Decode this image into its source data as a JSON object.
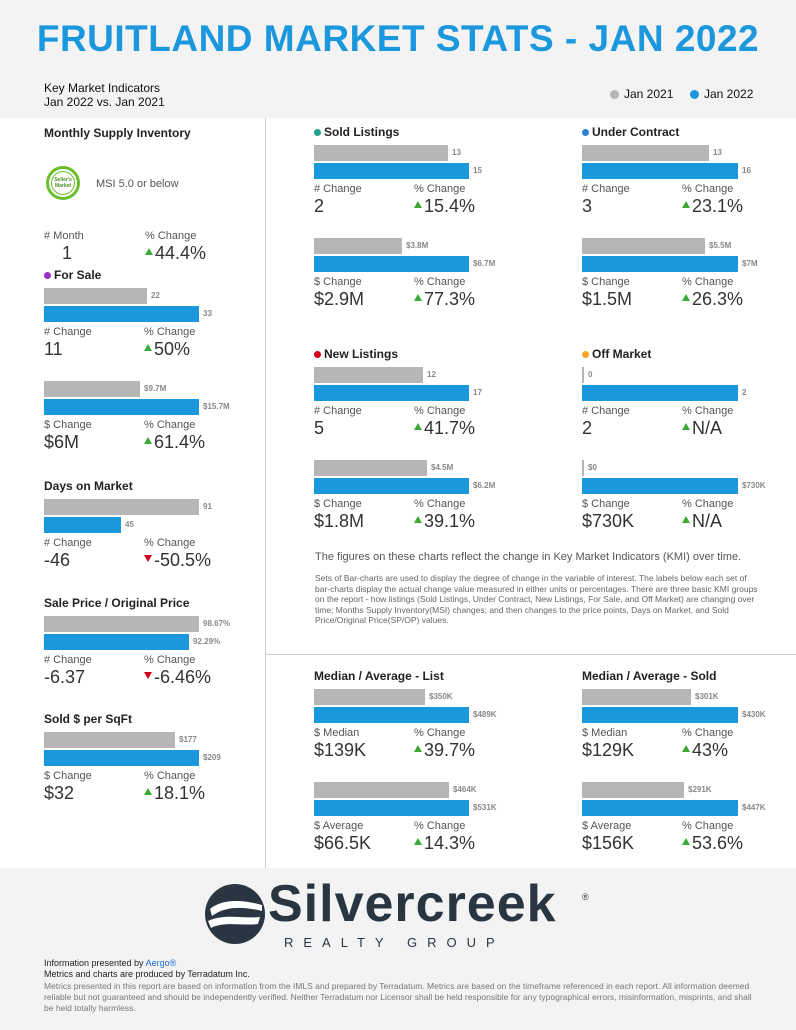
{
  "title": "FRUITLAND MARKET STATS - JAN 2022",
  "subtitle_line1": "Key Market Indicators",
  "subtitle_line2": "Jan 2022 vs. Jan 2021",
  "legend": [
    {
      "label": "Jan 2021",
      "color": "#b6b6b6"
    },
    {
      "label": "Jan 2022",
      "color": "#1b97dd"
    }
  ],
  "colors": {
    "prior": "#b6b6b6",
    "current": "#1b97dd",
    "up": "#3aaa35",
    "down": "#d0021b"
  },
  "msi": {
    "title": "Monthly Supply Inventory",
    "badge_text": "Seller's Market",
    "badge_icon": "sellers-market-badge-icon",
    "text": "MSI 5.0 or below",
    "change_label": "# Month",
    "change_value": "1",
    "pct_label": "% Change",
    "pct_value": "44.4%",
    "direction": "up"
  },
  "chart_data": [
    {
      "type": "bar",
      "title": "For Sale",
      "title_dot": "#9b30c9",
      "series": [
        {
          "name": "Jan 2021",
          "values": [
            22,
            9.7
          ]
        },
        {
          "name": "Jan 2022",
          "values": [
            33,
            15.7
          ]
        }
      ],
      "pairs": [
        {
          "max": 33,
          "values": [
            22,
            33
          ],
          "labels": [
            "22",
            "33"
          ],
          "change_label": "# Change",
          "change_value": "11",
          "pct_label": "% Change",
          "pct_value": "50%",
          "direction": "up"
        },
        {
          "max": 15.7,
          "values": [
            9.7,
            15.7
          ],
          "labels": [
            "$9.7M",
            "$15.7M"
          ],
          "change_label": "$ Change",
          "change_value": "$6M",
          "pct_label": "% Change",
          "pct_value": "61.4%",
          "direction": "up"
        }
      ]
    },
    {
      "type": "bar",
      "title": "Days on Market",
      "title_dot": null,
      "pairs": [
        {
          "max": 91,
          "values": [
            91,
            45
          ],
          "labels": [
            "91",
            "45"
          ],
          "change_label": "# Change",
          "change_value": "-46",
          "pct_label": "% Change",
          "pct_value": "-50.5%",
          "direction": "down"
        }
      ]
    },
    {
      "type": "bar",
      "title": "Sale Price / Original Price",
      "title_dot": null,
      "pairs": [
        {
          "max": 98.67,
          "values": [
            98.67,
            92.29
          ],
          "labels": [
            "98.67%",
            "92.29%"
          ],
          "change_label": "# Change",
          "change_value": "-6.37",
          "pct_label": "% Change",
          "pct_value": "-6.46%",
          "direction": "down"
        }
      ]
    },
    {
      "type": "bar",
      "title": "Sold $ per SqFt",
      "title_dot": null,
      "pairs": [
        {
          "max": 209,
          "values": [
            177,
            209
          ],
          "labels": [
            "$177",
            "$209"
          ],
          "change_label": "$ Change",
          "change_value": "$32",
          "pct_label": "% Change",
          "pct_value": "18.1%",
          "direction": "up"
        }
      ]
    },
    {
      "type": "bar",
      "title": "Sold Listings",
      "title_dot": "#1fa38a",
      "pairs": [
        {
          "max": 15,
          "values": [
            13,
            15
          ],
          "labels": [
            "13",
            "15"
          ],
          "change_label": "# Change",
          "change_value": "2",
          "pct_label": "% Change",
          "pct_value": "15.4%",
          "direction": "up"
        },
        {
          "max": 6.7,
          "values": [
            3.8,
            6.7
          ],
          "labels": [
            "$3.8M",
            "$6.7M"
          ],
          "change_label": "$ Change",
          "change_value": "$2.9M",
          "pct_label": "% Change",
          "pct_value": "77.3%",
          "direction": "up"
        }
      ]
    },
    {
      "type": "bar",
      "title": "Under Contract",
      "title_dot": "#2f7fd3",
      "pairs": [
        {
          "max": 16,
          "values": [
            13,
            16
          ],
          "labels": [
            "13",
            "16"
          ],
          "change_label": "# Change",
          "change_value": "3",
          "pct_label": "% Change",
          "pct_value": "23.1%",
          "direction": "up"
        },
        {
          "max": 7,
          "values": [
            5.5,
            7
          ],
          "labels": [
            "$5.5M",
            "$7M"
          ],
          "change_label": "$ Change",
          "change_value": "$1.5M",
          "pct_label": "% Change",
          "pct_value": "26.3%",
          "direction": "up"
        }
      ]
    },
    {
      "type": "bar",
      "title": "New Listings",
      "title_dot": "#d0021b",
      "pairs": [
        {
          "max": 17,
          "values": [
            12,
            17
          ],
          "labels": [
            "12",
            "17"
          ],
          "change_label": "# Change",
          "change_value": "5",
          "pct_label": "% Change",
          "pct_value": "41.7%",
          "direction": "up"
        },
        {
          "max": 6.2,
          "values": [
            4.5,
            6.2
          ],
          "labels": [
            "$4.5M",
            "$6.2M"
          ],
          "change_label": "$ Change",
          "change_value": "$1.8M",
          "pct_label": "% Change",
          "pct_value": "39.1%",
          "direction": "up"
        }
      ]
    },
    {
      "type": "bar",
      "title": "Off Market",
      "title_dot": "#f5a623",
      "pairs": [
        {
          "max": 2,
          "values": [
            0,
            2
          ],
          "labels": [
            "0",
            "2"
          ],
          "change_label": "# Change",
          "change_value": "2",
          "pct_label": "% Change",
          "pct_value": "N/A",
          "direction": "up"
        },
        {
          "max": 730,
          "values": [
            0,
            730
          ],
          "labels": [
            "$0",
            "$730K"
          ],
          "change_label": "$ Change",
          "change_value": "$730K",
          "pct_label": "% Change",
          "pct_value": "N/A",
          "direction": "up"
        }
      ]
    },
    {
      "type": "bar",
      "title": "Median / Average - List",
      "title_dot": null,
      "pairs": [
        {
          "max": 489,
          "values": [
            350,
            489
          ],
          "labels": [
            "$350K",
            "$489K"
          ],
          "change_label": "$ Median",
          "change_value": "$139K",
          "pct_label": "% Change",
          "pct_value": "39.7%",
          "direction": "up"
        },
        {
          "max": 531,
          "values": [
            464,
            531
          ],
          "labels": [
            "$464K",
            "$531K"
          ],
          "change_label": "$ Average",
          "change_value": "$66.5K",
          "pct_label": "% Change",
          "pct_value": "14.3%",
          "direction": "up"
        }
      ]
    },
    {
      "type": "bar",
      "title": "Median / Average - Sold",
      "title_dot": null,
      "pairs": [
        {
          "max": 430,
          "values": [
            301,
            430
          ],
          "labels": [
            "$301K",
            "$430K"
          ],
          "change_label": "$ Median",
          "change_value": "$129K",
          "pct_label": "% Change",
          "pct_value": "43%",
          "direction": "up"
        },
        {
          "max": 447,
          "values": [
            291,
            447
          ],
          "labels": [
            "$291K",
            "$447K"
          ],
          "change_label": "$ Average",
          "change_value": "$156K",
          "pct_label": "% Change",
          "pct_value": "53.6%",
          "direction": "up"
        }
      ]
    }
  ],
  "notes_main": "The figures on these charts reflect the change in Key Market Indicators (KMI) over time.",
  "notes_sub": "Sets of Bar-charts are used to display the degree of change in the variable of interest. The labels below each set of bar-charts display the actual change value measured in either units or percentages. There are three basic KMI groups on the report - how listings (Sold Listings, Under Contract, New Listings, For Sale, and Off Market) are changing over time; Months Supply Inventory(MSI) changes; and then changes to the price points, Days on Market, and Sold Price/Original Price(SP/OP) values.",
  "logo": {
    "icon": "silvercreek-s-logo-icon",
    "word": "Silvercreek",
    "reg": "®",
    "sub": "REALTY GROUP"
  },
  "footer": {
    "presented_prefix": "Information presented by ",
    "presented_name": "Aergo®",
    "produced": "Metrics and charts are produced by Terradatum Inc.",
    "disclaimer": "Metrics presented in this report are based on information from the IMLS and prepared by Terradatum. Metrics are based on the timeframe referenced in each report. All information deemed reliable but not guaranteed and should be independently verified. Neither Terradatum nor Licensor shall be held responsible for any typographical errors, misinformation, misprints, and shall be held totally harmless."
  }
}
